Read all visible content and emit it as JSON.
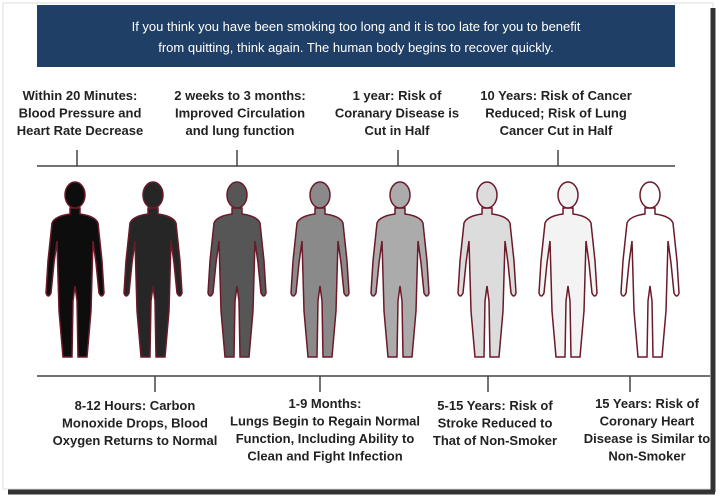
{
  "header": {
    "lines": [
      "If you think you have been smoking too long and it is too late for you to benefit",
      "from quitting, think again. The human body begins to recover quickly."
    ]
  },
  "top_labels": [
    {
      "lines": [
        "Within 20 Minutes:",
        "Blood Pressure and",
        "Heart Rate Decrease"
      ]
    },
    {
      "lines": [
        "2 weeks to 3 months:",
        "Improved Circulation",
        "and lung function"
      ]
    },
    {
      "lines": [
        "1 year: Risk of",
        "Coranary Disease is",
        "Cut in Half"
      ]
    },
    {
      "lines": [
        "10 Years: Risk of Cancer",
        "Reduced; Risk of Lung",
        "Cancer Cut in Half"
      ]
    }
  ],
  "bottom_labels": [
    {
      "lines": [
        "8-12 Hours: Carbon",
        "Monoxide Drops, Blood",
        "Oxygen Returns to Normal"
      ]
    },
    {
      "lines": [
        "1-9 Months:",
        "Lungs Begin to Regain Normal",
        "Function, Including Ability to",
        "Clean and Fight Infection"
      ]
    },
    {
      "lines": [
        "5-15 Years: Risk of",
        "Stroke Reduced to",
        "That of Non-Smoker"
      ]
    },
    {
      "lines": [
        "15 Years: Risk of",
        "Coronary Heart",
        "Disease is Similar to",
        "Non-Smoker"
      ]
    }
  ]
}
